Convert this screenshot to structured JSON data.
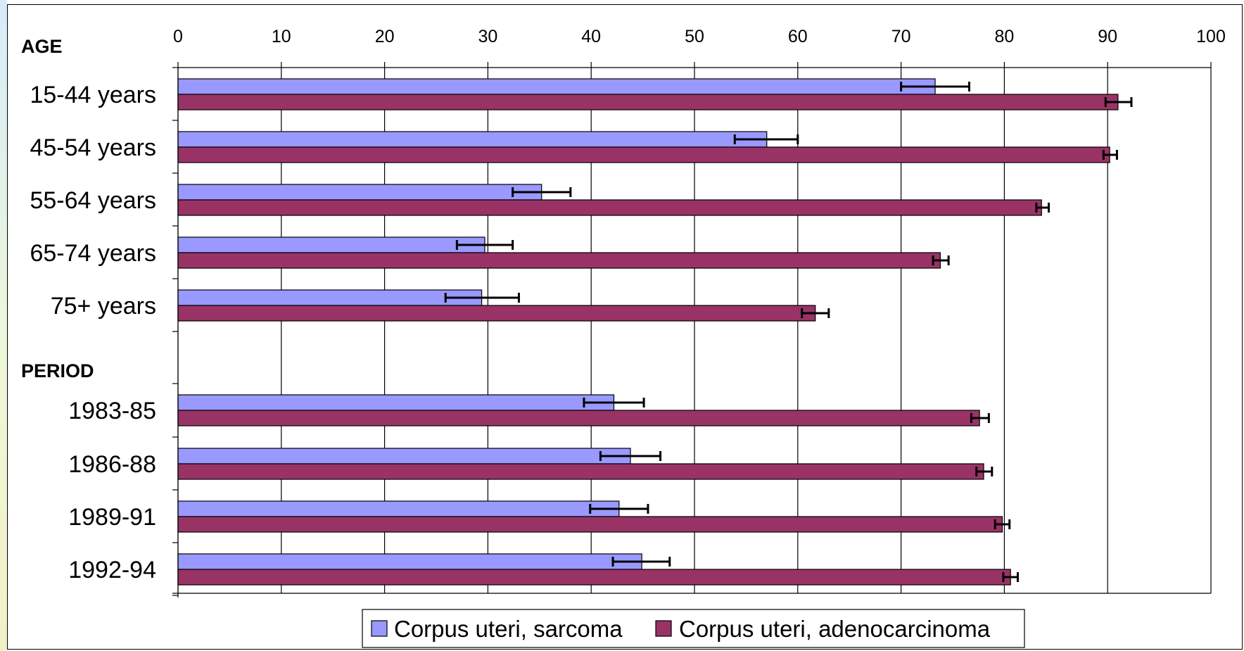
{
  "chart_data": {
    "type": "bar",
    "orientation": "horizontal",
    "xlim": [
      0,
      100
    ],
    "x_ticks": [
      0,
      10,
      20,
      30,
      40,
      50,
      60,
      70,
      80,
      90,
      100
    ],
    "grid": true,
    "legend_position": "bottom",
    "groups": [
      {
        "label": "AGE",
        "categories": [
          "15-44 years",
          "45-54 years",
          "55-64 years",
          "65-74 years",
          "75+ years"
        ]
      },
      {
        "label": "PERIOD",
        "categories": [
          "1983-85",
          "1986-88",
          "1989-91",
          "1992-94"
        ]
      }
    ],
    "series": [
      {
        "name": "Corpus uteri, sarcoma",
        "color": "#9999ff",
        "values": [
          73.3,
          57.0,
          35.2,
          29.7,
          29.4,
          42.2,
          43.8,
          42.7,
          44.9
        ],
        "error_low": [
          70.0,
          53.9,
          32.4,
          27.0,
          25.9,
          39.3,
          40.9,
          39.9,
          42.1
        ],
        "error_high": [
          76.6,
          60.0,
          38.0,
          32.4,
          33.0,
          45.1,
          46.7,
          45.5,
          47.6
        ]
      },
      {
        "name": "Corpus uteri, adenocarcinoma",
        "color": "#993366",
        "values": [
          91.0,
          90.2,
          83.6,
          73.8,
          61.7,
          77.6,
          78.0,
          79.8,
          80.6
        ],
        "error_low": [
          89.8,
          89.6,
          83.1,
          73.1,
          60.4,
          76.8,
          77.3,
          79.1,
          79.9
        ],
        "error_high": [
          92.3,
          90.9,
          84.3,
          74.6,
          63.0,
          78.5,
          78.8,
          80.5,
          81.3
        ]
      }
    ]
  }
}
